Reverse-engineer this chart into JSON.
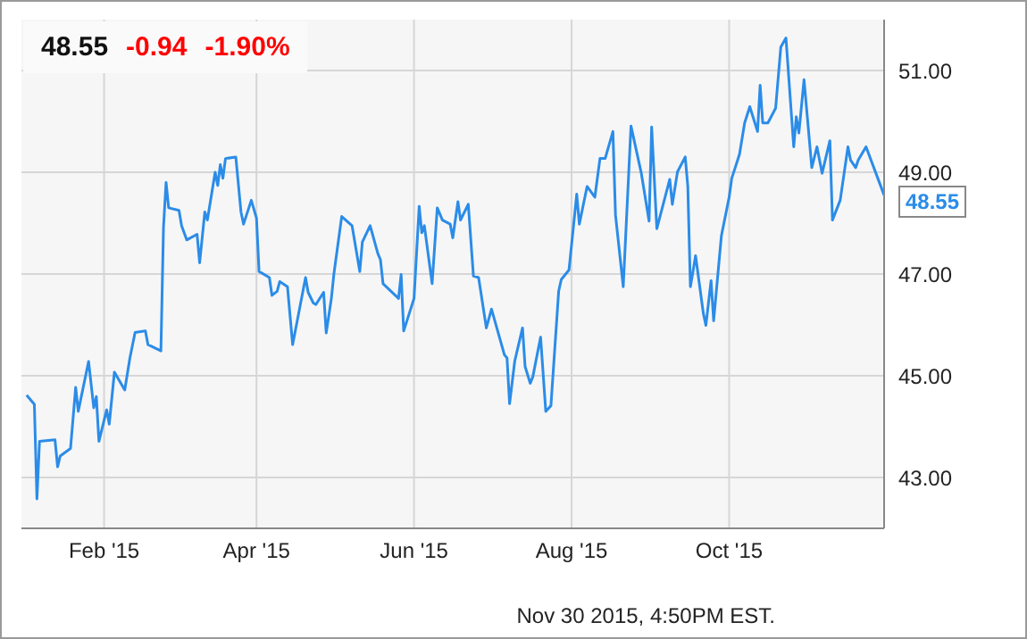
{
  "chart_data": {
    "type": "line",
    "x": [
      "2015-01-02",
      "2015-01-05",
      "2015-01-06",
      "2015-01-07",
      "2015-01-13",
      "2015-01-14",
      "2015-01-15",
      "2015-01-19",
      "2015-01-21",
      "2015-01-22",
      "2015-01-26",
      "2015-01-28",
      "2015-01-29",
      "2015-01-30",
      "2015-02-02",
      "2015-02-03",
      "2015-02-05",
      "2015-02-09",
      "2015-02-11",
      "2015-02-13",
      "2015-02-17",
      "2015-02-18",
      "2015-02-23",
      "2015-02-24",
      "2015-02-25",
      "2015-02-26",
      "2015-03-02",
      "2015-03-03",
      "2015-03-05",
      "2015-03-09",
      "2015-03-10",
      "2015-03-12",
      "2015-03-13",
      "2015-03-16",
      "2015-03-17",
      "2015-03-18",
      "2015-03-19",
      "2015-03-20",
      "2015-03-24",
      "2015-03-26",
      "2015-03-27",
      "2015-03-30",
      "2015-04-01",
      "2015-04-02",
      "2015-04-06",
      "2015-04-07",
      "2015-04-09",
      "2015-04-10",
      "2015-04-13",
      "2015-04-15",
      "2015-04-20",
      "2015-04-21",
      "2015-04-23",
      "2015-04-24",
      "2015-04-27",
      "2015-04-28",
      "2015-04-30",
      "2015-05-01",
      "2015-05-04",
      "2015-05-08",
      "2015-05-11",
      "2015-05-12",
      "2015-05-15",
      "2015-05-18",
      "2015-05-19",
      "2015-05-20",
      "2015-05-26",
      "2015-05-27",
      "2015-05-28",
      "2015-06-01",
      "2015-06-03",
      "2015-06-04",
      "2015-06-05",
      "2015-06-08",
      "2015-06-10",
      "2015-06-12",
      "2015-06-15",
      "2015-06-16",
      "2015-06-18",
      "2015-06-19",
      "2015-06-22",
      "2015-06-24",
      "2015-06-26",
      "2015-06-29",
      "2015-07-01",
      "2015-07-06",
      "2015-07-07",
      "2015-07-08",
      "2015-07-10",
      "2015-07-13",
      "2015-07-14",
      "2015-07-16",
      "2015-07-17",
      "2015-07-20",
      "2015-07-22",
      "2015-07-24",
      "2015-07-27",
      "2015-07-28",
      "2015-07-31",
      "2015-08-03",
      "2015-08-04",
      "2015-08-07",
      "2015-08-10",
      "2015-08-12",
      "2015-08-14",
      "2015-08-17",
      "2015-08-18",
      "2015-08-21",
      "2015-08-24",
      "2015-08-28",
      "2015-08-31",
      "2015-09-01",
      "2015-09-03",
      "2015-09-08",
      "2015-09-09",
      "2015-09-11",
      "2015-09-14",
      "2015-09-15",
      "2015-09-16",
      "2015-09-17",
      "2015-09-18",
      "2015-09-21",
      "2015-09-22",
      "2015-09-24",
      "2015-09-25",
      "2015-09-28",
      "2015-10-01",
      "2015-10-02",
      "2015-10-05",
      "2015-10-07",
      "2015-10-09",
      "2015-10-12",
      "2015-10-13",
      "2015-10-14",
      "2015-10-16",
      "2015-10-19",
      "2015-10-21",
      "2015-10-23",
      "2015-10-26",
      "2015-10-27",
      "2015-10-28",
      "2015-10-30",
      "2015-11-02",
      "2015-11-04",
      "2015-11-06",
      "2015-11-09",
      "2015-11-10",
      "2015-11-13",
      "2015-11-16",
      "2015-11-17",
      "2015-11-19",
      "2015-11-20",
      "2015-11-23",
      "2015-11-30"
    ],
    "series": [
      {
        "color": "#2b8ce8",
        "values": [
          44.62,
          44.44,
          42.58,
          43.71,
          43.74,
          43.21,
          43.42,
          43.57,
          44.77,
          44.3,
          45.28,
          44.37,
          44.59,
          43.71,
          44.33,
          44.05,
          45.07,
          44.72,
          45.35,
          45.85,
          45.88,
          45.61,
          45.49,
          47.92,
          48.8,
          48.3,
          48.25,
          47.95,
          47.67,
          47.78,
          47.22,
          48.22,
          48.06,
          49.0,
          48.74,
          49.15,
          48.88,
          49.27,
          49.3,
          48.22,
          47.98,
          48.45,
          48.1,
          47.05,
          46.93,
          46.58,
          46.66,
          46.85,
          46.75,
          45.61,
          46.93,
          46.64,
          46.43,
          46.4,
          46.64,
          45.84,
          46.52,
          47.01,
          48.13,
          47.95,
          47.05,
          47.63,
          47.95,
          47.4,
          47.28,
          46.81,
          46.52,
          46.99,
          45.88,
          46.52,
          48.33,
          47.81,
          47.95,
          46.81,
          48.3,
          48.06,
          47.98,
          47.71,
          48.42,
          48.06,
          48.37,
          46.96,
          46.93,
          45.94,
          46.31,
          45.41,
          45.35,
          44.45,
          45.29,
          45.94,
          45.18,
          44.85,
          44.98,
          45.76,
          44.3,
          44.41,
          46.66,
          46.89,
          47.08,
          48.57,
          47.98,
          48.72,
          48.51,
          49.27,
          49.27,
          49.8,
          48.16,
          46.75,
          49.91,
          48.98,
          48.04,
          49.89,
          47.89,
          48.86,
          48.37,
          49.01,
          49.3,
          48.72,
          46.75,
          47.05,
          47.36,
          46.23,
          45.99,
          46.87,
          46.08,
          47.75,
          48.51,
          48.88,
          49.35,
          49.97,
          50.29,
          49.8,
          50.71,
          49.97,
          49.97,
          50.26,
          51.46,
          51.64,
          49.5,
          50.09,
          49.77,
          50.82,
          49.09,
          49.5,
          48.98,
          49.62,
          48.06,
          48.45,
          49.5,
          49.24,
          49.09,
          49.24,
          49.5,
          48.55
        ]
      }
    ],
    "xlim": [
      "2014-12-31",
      "2015-11-30"
    ],
    "xticks": [
      {
        "value": "2015-02-01",
        "label": "Feb '15"
      },
      {
        "value": "2015-04-01",
        "label": "Apr '15"
      },
      {
        "value": "2015-06-01",
        "label": "Jun '15"
      },
      {
        "value": "2015-08-01",
        "label": "Aug '15"
      },
      {
        "value": "2015-10-01",
        "label": "Oct '15"
      }
    ],
    "ylim": [
      42,
      52
    ],
    "yticks": [
      {
        "value": 43,
        "label": "43.00"
      },
      {
        "value": 45,
        "label": "45.00"
      },
      {
        "value": 47,
        "label": "47.00"
      },
      {
        "value": 49,
        "label": "49.00"
      },
      {
        "value": 51,
        "label": "51.00"
      }
    ],
    "grid": true,
    "annotations": [
      "48.55",
      "-0.94",
      "-1.90%",
      {
        "text": "48.55",
        "x": "2015-11-30",
        "y": 48.55
      },
      "Nov 30 2015, 4:50PM EST."
    ]
  }
}
